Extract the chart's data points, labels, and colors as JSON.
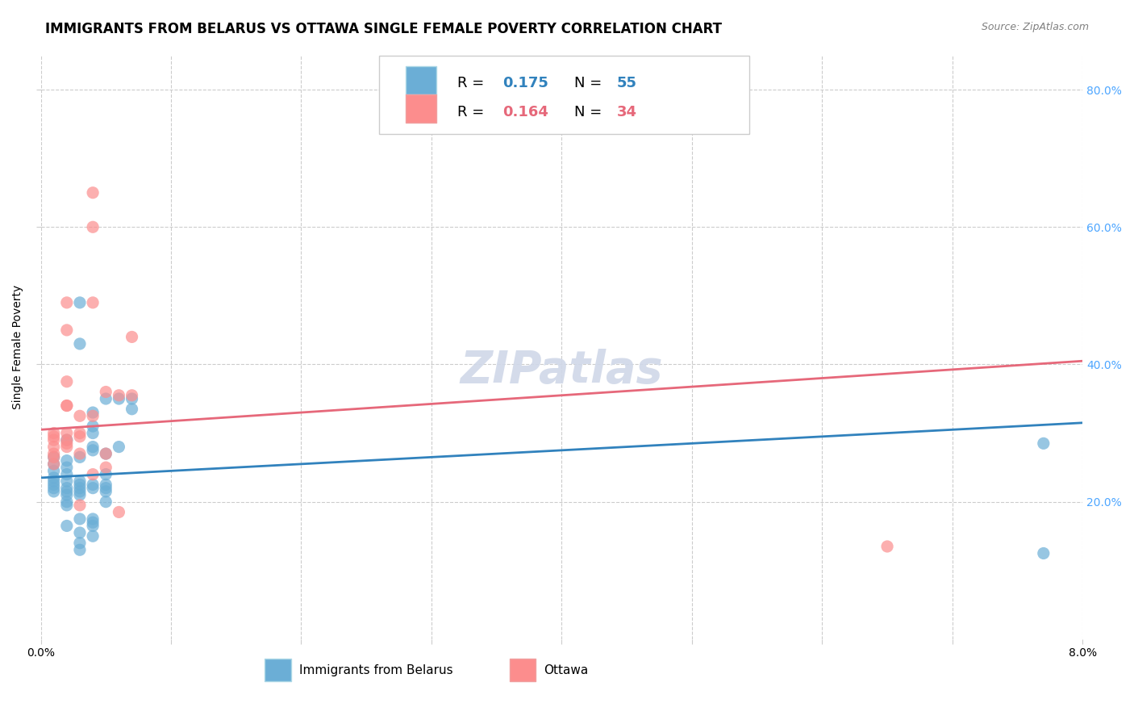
{
  "title": "IMMIGRANTS FROM BELARUS VS OTTAWA SINGLE FEMALE POVERTY CORRELATION CHART",
  "source": "Source: ZipAtlas.com",
  "ylabel": "Single Female Poverty",
  "legend_label_blue": "Immigrants from Belarus",
  "legend_label_pink": "Ottawa",
  "legend_R_blue": "0.175",
  "legend_N_blue": "55",
  "legend_R_pink": "0.164",
  "legend_N_pink": "34",
  "xlim": [
    0.0,
    0.08
  ],
  "ylim": [
    0.0,
    0.85
  ],
  "yticks": [
    0.2,
    0.4,
    0.6,
    0.8
  ],
  "ytick_labels": [
    "20.0%",
    "40.0%",
    "60.0%",
    "80.0%"
  ],
  "watermark": "ZIPatlas",
  "blue_dots": [
    [
      0.001,
      0.245
    ],
    [
      0.001,
      0.225
    ],
    [
      0.001,
      0.235
    ],
    [
      0.001,
      0.215
    ],
    [
      0.001,
      0.255
    ],
    [
      0.001,
      0.265
    ],
    [
      0.001,
      0.23
    ],
    [
      0.001,
      0.22
    ],
    [
      0.002,
      0.24
    ],
    [
      0.002,
      0.23
    ],
    [
      0.002,
      0.22
    ],
    [
      0.002,
      0.215
    ],
    [
      0.002,
      0.25
    ],
    [
      0.002,
      0.2
    ],
    [
      0.002,
      0.195
    ],
    [
      0.002,
      0.21
    ],
    [
      0.002,
      0.165
    ],
    [
      0.002,
      0.26
    ],
    [
      0.002,
      0.29
    ],
    [
      0.003,
      0.23
    ],
    [
      0.003,
      0.22
    ],
    [
      0.003,
      0.21
    ],
    [
      0.003,
      0.225
    ],
    [
      0.003,
      0.215
    ],
    [
      0.003,
      0.265
    ],
    [
      0.003,
      0.43
    ],
    [
      0.003,
      0.49
    ],
    [
      0.003,
      0.155
    ],
    [
      0.003,
      0.14
    ],
    [
      0.003,
      0.13
    ],
    [
      0.003,
      0.175
    ],
    [
      0.004,
      0.22
    ],
    [
      0.004,
      0.225
    ],
    [
      0.004,
      0.3
    ],
    [
      0.004,
      0.31
    ],
    [
      0.004,
      0.28
    ],
    [
      0.004,
      0.275
    ],
    [
      0.004,
      0.33
    ],
    [
      0.004,
      0.15
    ],
    [
      0.004,
      0.165
    ],
    [
      0.004,
      0.17
    ],
    [
      0.004,
      0.175
    ],
    [
      0.005,
      0.35
    ],
    [
      0.005,
      0.24
    ],
    [
      0.005,
      0.22
    ],
    [
      0.005,
      0.225
    ],
    [
      0.005,
      0.27
    ],
    [
      0.005,
      0.215
    ],
    [
      0.005,
      0.2
    ],
    [
      0.006,
      0.35
    ],
    [
      0.006,
      0.28
    ],
    [
      0.007,
      0.335
    ],
    [
      0.007,
      0.35
    ],
    [
      0.077,
      0.125
    ],
    [
      0.077,
      0.285
    ]
  ],
  "pink_dots": [
    [
      0.001,
      0.255
    ],
    [
      0.001,
      0.265
    ],
    [
      0.001,
      0.27
    ],
    [
      0.001,
      0.28
    ],
    [
      0.001,
      0.29
    ],
    [
      0.001,
      0.295
    ],
    [
      0.001,
      0.3
    ],
    [
      0.002,
      0.29
    ],
    [
      0.002,
      0.285
    ],
    [
      0.002,
      0.28
    ],
    [
      0.002,
      0.3
    ],
    [
      0.002,
      0.34
    ],
    [
      0.002,
      0.34
    ],
    [
      0.002,
      0.375
    ],
    [
      0.002,
      0.45
    ],
    [
      0.002,
      0.49
    ],
    [
      0.003,
      0.325
    ],
    [
      0.003,
      0.295
    ],
    [
      0.003,
      0.3
    ],
    [
      0.003,
      0.195
    ],
    [
      0.003,
      0.27
    ],
    [
      0.004,
      0.49
    ],
    [
      0.004,
      0.6
    ],
    [
      0.004,
      0.65
    ],
    [
      0.004,
      0.325
    ],
    [
      0.004,
      0.24
    ],
    [
      0.005,
      0.36
    ],
    [
      0.005,
      0.25
    ],
    [
      0.005,
      0.27
    ],
    [
      0.006,
      0.355
    ],
    [
      0.006,
      0.185
    ],
    [
      0.007,
      0.44
    ],
    [
      0.007,
      0.355
    ],
    [
      0.065,
      0.135
    ]
  ],
  "blue_line_x": [
    0.0,
    0.08
  ],
  "blue_line_y": [
    0.235,
    0.315
  ],
  "pink_line_x": [
    0.0,
    0.08
  ],
  "pink_line_y": [
    0.305,
    0.405
  ],
  "dot_size": 120,
  "blue_color": "#6baed6",
  "pink_color": "#fc8d8d",
  "blue_line_color": "#3182bd",
  "pink_line_color": "#e6687a",
  "grid_color": "#cccccc",
  "bg_color": "#ffffff",
  "title_fontsize": 12,
  "axis_label_fontsize": 10,
  "tick_fontsize": 10,
  "source_fontsize": 9,
  "watermark_fontsize": 40,
  "watermark_color": "#d0d8e8",
  "right_ytick_color": "#4da6ff"
}
